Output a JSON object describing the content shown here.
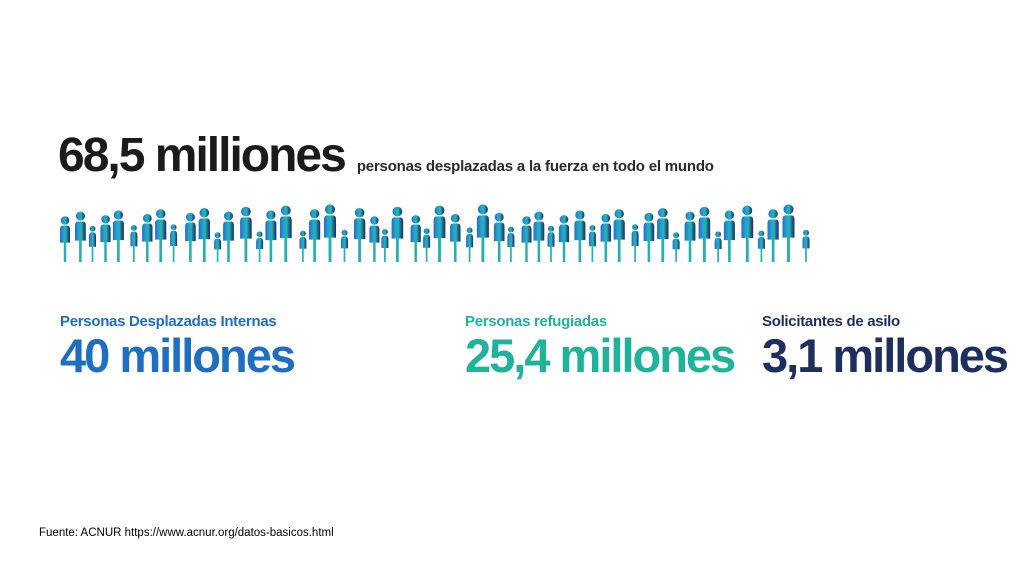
{
  "headline": {
    "total": "68,5 milliones",
    "description": "personas desplazadas a la fuerza en todo el mundo",
    "color": "#1b1b1b"
  },
  "crowd": {
    "gradient": [
      "#1f6fc0",
      "#2aa7d8",
      "#22b8a0",
      "#1f4a8a",
      "#1e2f5e"
    ]
  },
  "stats": [
    {
      "label": "Personas Desplazadas Internas",
      "value": "40 millones",
      "color": "#1f6fc0"
    },
    {
      "label": "Personas refugiadas",
      "value": "25,4 millones",
      "color": "#1fb39a"
    },
    {
      "label": "Solicitantes de asilo",
      "value": "3,1 millones",
      "color": "#1e2f5e"
    }
  ],
  "footer": {
    "source": "Fuente:  ACNUR https://www.acnur.org/datos-basicos.html"
  }
}
